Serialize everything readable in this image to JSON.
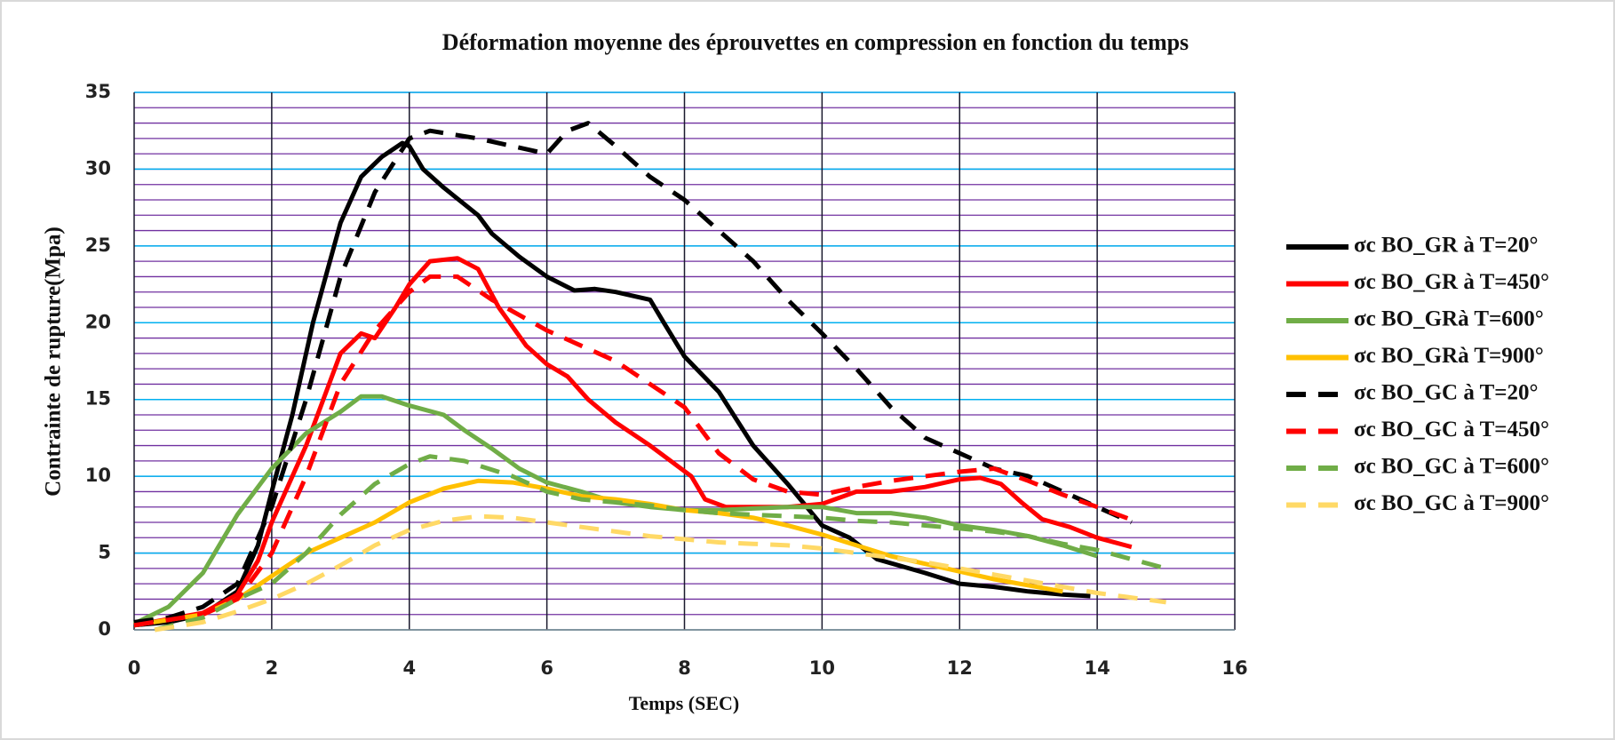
{
  "chart_data": {
    "type": "line",
    "title": "Déformation  moyenne des éprouvettes en compression en fonction du temps",
    "xlabel": "Temps (SEC)",
    "ylabel": "Contrainte de rupture(Mpa)",
    "xlim": [
      0,
      16
    ],
    "xticks": [
      0,
      2,
      4,
      6,
      8,
      10,
      12,
      14,
      16
    ],
    "ylim": [
      0,
      35
    ],
    "yticks": [
      0,
      5,
      10,
      15,
      20,
      25,
      30,
      35
    ],
    "grid": true,
    "yminor_step": 1,
    "legend": "right",
    "series": [
      {
        "name": "σc BO_GR à T=20°",
        "color": "#000000",
        "style": "solid",
        "x": [
          0,
          0.5,
          1,
          1.5,
          1.8,
          2,
          2.3,
          2.6,
          3,
          3.3,
          3.6,
          3.9,
          4,
          4.2,
          4.5,
          5,
          5.2,
          5.6,
          6,
          6.4,
          6.7,
          7,
          7.5,
          7.7,
          8,
          8.5,
          9,
          9.5,
          10,
          10.4,
          10.8,
          11.5,
          12,
          12.5,
          13,
          13.5,
          13.9
        ],
        "values": [
          0.3,
          0.5,
          1.0,
          2.5,
          5.5,
          9,
          14,
          20,
          26.5,
          29.5,
          30.8,
          31.7,
          31.5,
          30,
          28.8,
          27,
          25.8,
          24.3,
          23,
          22.1,
          22.2,
          22,
          21.5,
          20,
          17.8,
          15.5,
          12,
          9.5,
          6.8,
          6,
          4.6,
          3.7,
          3,
          2.8,
          2.5,
          2.3,
          2.2
        ]
      },
      {
        "name": "σc BO_GR à T=450°",
        "color": "#ff0000",
        "style": "solid",
        "x": [
          0,
          1,
          1.5,
          1.8,
          2,
          2.5,
          3,
          3.3,
          3.5,
          3.8,
          4,
          4.3,
          4.7,
          5,
          5.3,
          5.7,
          6,
          6.3,
          6.6,
          7,
          7.5,
          7.8,
          8.1,
          8.3,
          8.6,
          9,
          9.5,
          10,
          10.5,
          11,
          11.5,
          12,
          12.3,
          12.6,
          12.9,
          13.2,
          13.6,
          14,
          14.5
        ],
        "values": [
          0.3,
          1.1,
          2.3,
          4.5,
          7,
          12,
          18,
          19.3,
          19,
          21,
          22.5,
          24,
          24.2,
          23.5,
          21,
          18.5,
          17.3,
          16.5,
          15,
          13.5,
          12,
          11,
          10,
          8.5,
          8,
          8,
          8,
          8.2,
          9,
          9,
          9.3,
          9.8,
          9.9,
          9.5,
          8.3,
          7.2,
          6.7,
          6,
          5.4
        ]
      },
      {
        "name": "σc BO_GRà T=600°",
        "color": "#70ad47",
        "style": "solid",
        "x": [
          0,
          0.5,
          1,
          1.5,
          2,
          2.5,
          3,
          3.3,
          3.6,
          4,
          4.5,
          4.8,
          5.2,
          5.6,
          6,
          6.5,
          7,
          7.5,
          8,
          8.5,
          9,
          9.5,
          10,
          10.5,
          11,
          11.5,
          12,
          12.5,
          13,
          13.5,
          14
        ],
        "values": [
          0.4,
          1.5,
          3.7,
          7.5,
          10.5,
          12.8,
          14.2,
          15.2,
          15.2,
          14.6,
          14,
          13,
          11.8,
          10.5,
          9.6,
          9,
          8.3,
          8,
          7.8,
          7.8,
          7.9,
          8,
          8,
          7.6,
          7.6,
          7.3,
          6.8,
          6.5,
          6.1,
          5.5,
          4.8
        ]
      },
      {
        "name": "σc BO_GRà T=900°",
        "color": "#ffc000",
        "style": "solid",
        "x": [
          0,
          1,
          1.5,
          2,
          2.5,
          3,
          3.5,
          4,
          4.5,
          5,
          5.5,
          6,
          6.5,
          7,
          7.5,
          8,
          8.5,
          9,
          9.5,
          10,
          10.5,
          11,
          11.5,
          12,
          12.5,
          13,
          13.5
        ],
        "values": [
          0.3,
          1,
          2,
          3.5,
          5,
          6,
          7,
          8.3,
          9.2,
          9.7,
          9.6,
          9.2,
          8.7,
          8.5,
          8.2,
          7.8,
          7.6,
          7.3,
          6.8,
          6.2,
          5.5,
          4.8,
          4.3,
          3.8,
          3.3,
          2.9,
          2.5
        ]
      },
      {
        "name": "σc BO_GC à T=20°",
        "color": "#000000",
        "style": "dashed",
        "x": [
          0,
          0.5,
          1,
          1.5,
          2,
          2.5,
          3,
          3.5,
          4,
          4.3,
          5,
          5.5,
          6,
          6.3,
          6.6,
          7,
          7.5,
          8,
          8.5,
          9,
          9.5,
          10,
          10.5,
          11,
          11.5,
          12,
          12.5,
          13,
          13.5,
          14,
          14.5
        ],
        "values": [
          0.5,
          0.8,
          1.5,
          3,
          8,
          15,
          23,
          28.5,
          32,
          32.5,
          32,
          31.5,
          31,
          32.5,
          33,
          31.5,
          29.5,
          28,
          26,
          24,
          21.5,
          19.3,
          17,
          14.5,
          12.5,
          11.5,
          10.5,
          10,
          9,
          8,
          7
        ]
      },
      {
        "name": "σc BO_GC à T=450°",
        "color": "#ff0000",
        "style": "dashed",
        "x": [
          0,
          1,
          1.5,
          2,
          2.5,
          3,
          3.5,
          4,
          4.3,
          4.7,
          5.2,
          6,
          6.5,
          7,
          7.5,
          8,
          8.5,
          9,
          9.5,
          10,
          10.5,
          11,
          11.5,
          12,
          12.5,
          13,
          13.5,
          14,
          14.6
        ],
        "values": [
          0.3,
          1,
          2,
          5,
          10,
          16,
          19.5,
          22,
          23,
          23,
          21.5,
          19.5,
          18.5,
          17.5,
          16,
          14.5,
          11.5,
          9.8,
          9,
          8.8,
          9.3,
          9.7,
          10,
          10.3,
          10.5,
          9.7,
          8.8,
          8,
          7
        ]
      },
      {
        "name": "σc BO_GC à T=600°",
        "color": "#70ad47",
        "style": "dashed",
        "x": [
          0.3,
          1,
          1.5,
          2,
          2.5,
          3,
          3.5,
          4,
          4.3,
          4.8,
          5.5,
          6,
          6.5,
          7,
          7.5,
          8,
          8.5,
          9,
          9.5,
          10,
          10.5,
          11,
          11.5,
          12,
          12.5,
          13,
          13.5,
          14,
          14.5,
          15
        ],
        "values": [
          0,
          0.8,
          2,
          3,
          5,
          7.5,
          9.5,
          10.8,
          11.3,
          11,
          10,
          9,
          8.5,
          8.3,
          8.1,
          7.8,
          7.6,
          7.5,
          7.4,
          7.3,
          7.1,
          7,
          6.8,
          6.6,
          6.4,
          6.1,
          5.6,
          5.2,
          4.6,
          4
        ]
      },
      {
        "name": "σc BO_GC à T=900°",
        "color": "#ffd966",
        "style": "dashed",
        "x": [
          0.3,
          1,
          1.5,
          2,
          2.5,
          3,
          3.5,
          4,
          4.5,
          5,
          5.5,
          6,
          6.5,
          7,
          7.5,
          8,
          8.5,
          9,
          9.5,
          10,
          10.5,
          11,
          11.5,
          12,
          12.5,
          13,
          13.5,
          14,
          14.5,
          15
        ],
        "values": [
          0,
          0.5,
          1.2,
          2,
          3,
          4.2,
          5.5,
          6.5,
          7.1,
          7.4,
          7.3,
          7,
          6.7,
          6.4,
          6.1,
          5.9,
          5.7,
          5.6,
          5.5,
          5.3,
          5,
          4.7,
          4.4,
          4,
          3.6,
          3.2,
          2.8,
          2.4,
          2.1,
          1.8
        ]
      }
    ]
  }
}
